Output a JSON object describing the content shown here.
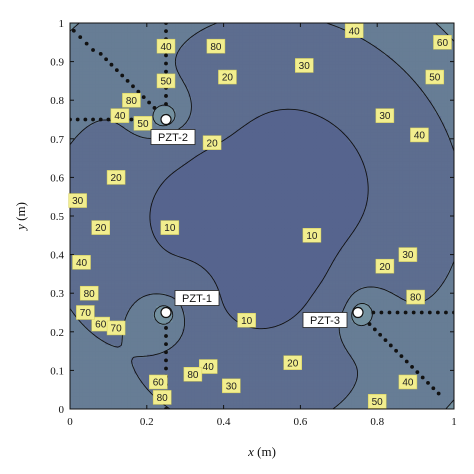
{
  "chart_data": {
    "type": "contour",
    "xlabel_var": "x",
    "xlabel_unit": "(m)",
    "ylabel_var": "y",
    "ylabel_unit": "(m)",
    "xlim": [
      0,
      1
    ],
    "ylim": [
      0,
      1
    ],
    "x_ticks": [
      "0",
      "0.2",
      "0.4",
      "0.6",
      "0.8",
      "1"
    ],
    "y_ticks": [
      "0",
      "0.1",
      "0.2",
      "0.3",
      "0.4",
      "0.5",
      "0.6",
      "0.7",
      "0.8",
      "0.9",
      "1"
    ],
    "levels": [
      10,
      20,
      30,
      40,
      50,
      60,
      70,
      80
    ],
    "fill_colors": [
      "#4e66a3",
      "#56648e",
      "#5d6d8f",
      "#677d95",
      "#73909f",
      "#7f9ea8",
      "#8baeb2",
      "#98bcbc",
      "#a7c8c4"
    ],
    "sensors": [
      {
        "name": "PZT-1",
        "x": 0.25,
        "y": 0.25
      },
      {
        "name": "PZT-2",
        "x": 0.25,
        "y": 0.75
      },
      {
        "name": "PZT-3",
        "x": 0.75,
        "y": 0.25
      }
    ],
    "contour_labels": [
      {
        "text": "10",
        "x": 0.26,
        "y": 0.47
      },
      {
        "text": "10",
        "x": 0.63,
        "y": 0.45
      },
      {
        "text": "10",
        "x": 0.46,
        "y": 0.23
      },
      {
        "text": "20",
        "x": 0.37,
        "y": 0.69
      },
      {
        "text": "20",
        "x": 0.12,
        "y": 0.6
      },
      {
        "text": "20",
        "x": 0.08,
        "y": 0.47
      },
      {
        "text": "20",
        "x": 0.58,
        "y": 0.12
      },
      {
        "text": "20",
        "x": 0.82,
        "y": 0.37
      },
      {
        "text": "20",
        "x": 0.41,
        "y": 0.86
      },
      {
        "text": "30",
        "x": 0.61,
        "y": 0.89
      },
      {
        "text": "30",
        "x": 0.82,
        "y": 0.76
      },
      {
        "text": "30",
        "x": 0.02,
        "y": 0.54
      },
      {
        "text": "30",
        "x": 0.88,
        "y": 0.4
      },
      {
        "text": "30",
        "x": 0.42,
        "y": 0.06
      },
      {
        "text": "40",
        "x": 0.74,
        "y": 0.98
      },
      {
        "text": "40",
        "x": 0.91,
        "y": 0.71
      },
      {
        "text": "40",
        "x": 0.25,
        "y": 0.94
      },
      {
        "text": "40",
        "x": 0.13,
        "y": 0.76
      },
      {
        "text": "40",
        "x": 0.03,
        "y": 0.38
      },
      {
        "text": "40",
        "x": 0.36,
        "y": 0.11
      },
      {
        "text": "40",
        "x": 0.88,
        "y": 0.07
      },
      {
        "text": "50",
        "x": 0.95,
        "y": 0.86
      },
      {
        "text": "50",
        "x": 0.8,
        "y": 0.02
      },
      {
        "text": "50",
        "x": 0.25,
        "y": 0.85
      },
      {
        "text": "50",
        "x": 0.19,
        "y": 0.74
      },
      {
        "text": "60",
        "x": 0.97,
        "y": 0.95
      },
      {
        "text": "60",
        "x": 0.23,
        "y": 0.07
      },
      {
        "text": "60",
        "x": 0.08,
        "y": 0.22
      },
      {
        "text": "70",
        "x": 0.04,
        "y": 0.25
      },
      {
        "text": "70",
        "x": 0.12,
        "y": 0.21
      },
      {
        "text": "80",
        "x": 0.38,
        "y": 0.94
      },
      {
        "text": "80",
        "x": 0.16,
        "y": 0.8
      },
      {
        "text": "80",
        "x": 0.05,
        "y": 0.3
      },
      {
        "text": "80",
        "x": 0.32,
        "y": 0.09
      },
      {
        "text": "80",
        "x": 0.9,
        "y": 0.29
      },
      {
        "text": "80",
        "x": 0.24,
        "y": 0.03
      }
    ]
  }
}
